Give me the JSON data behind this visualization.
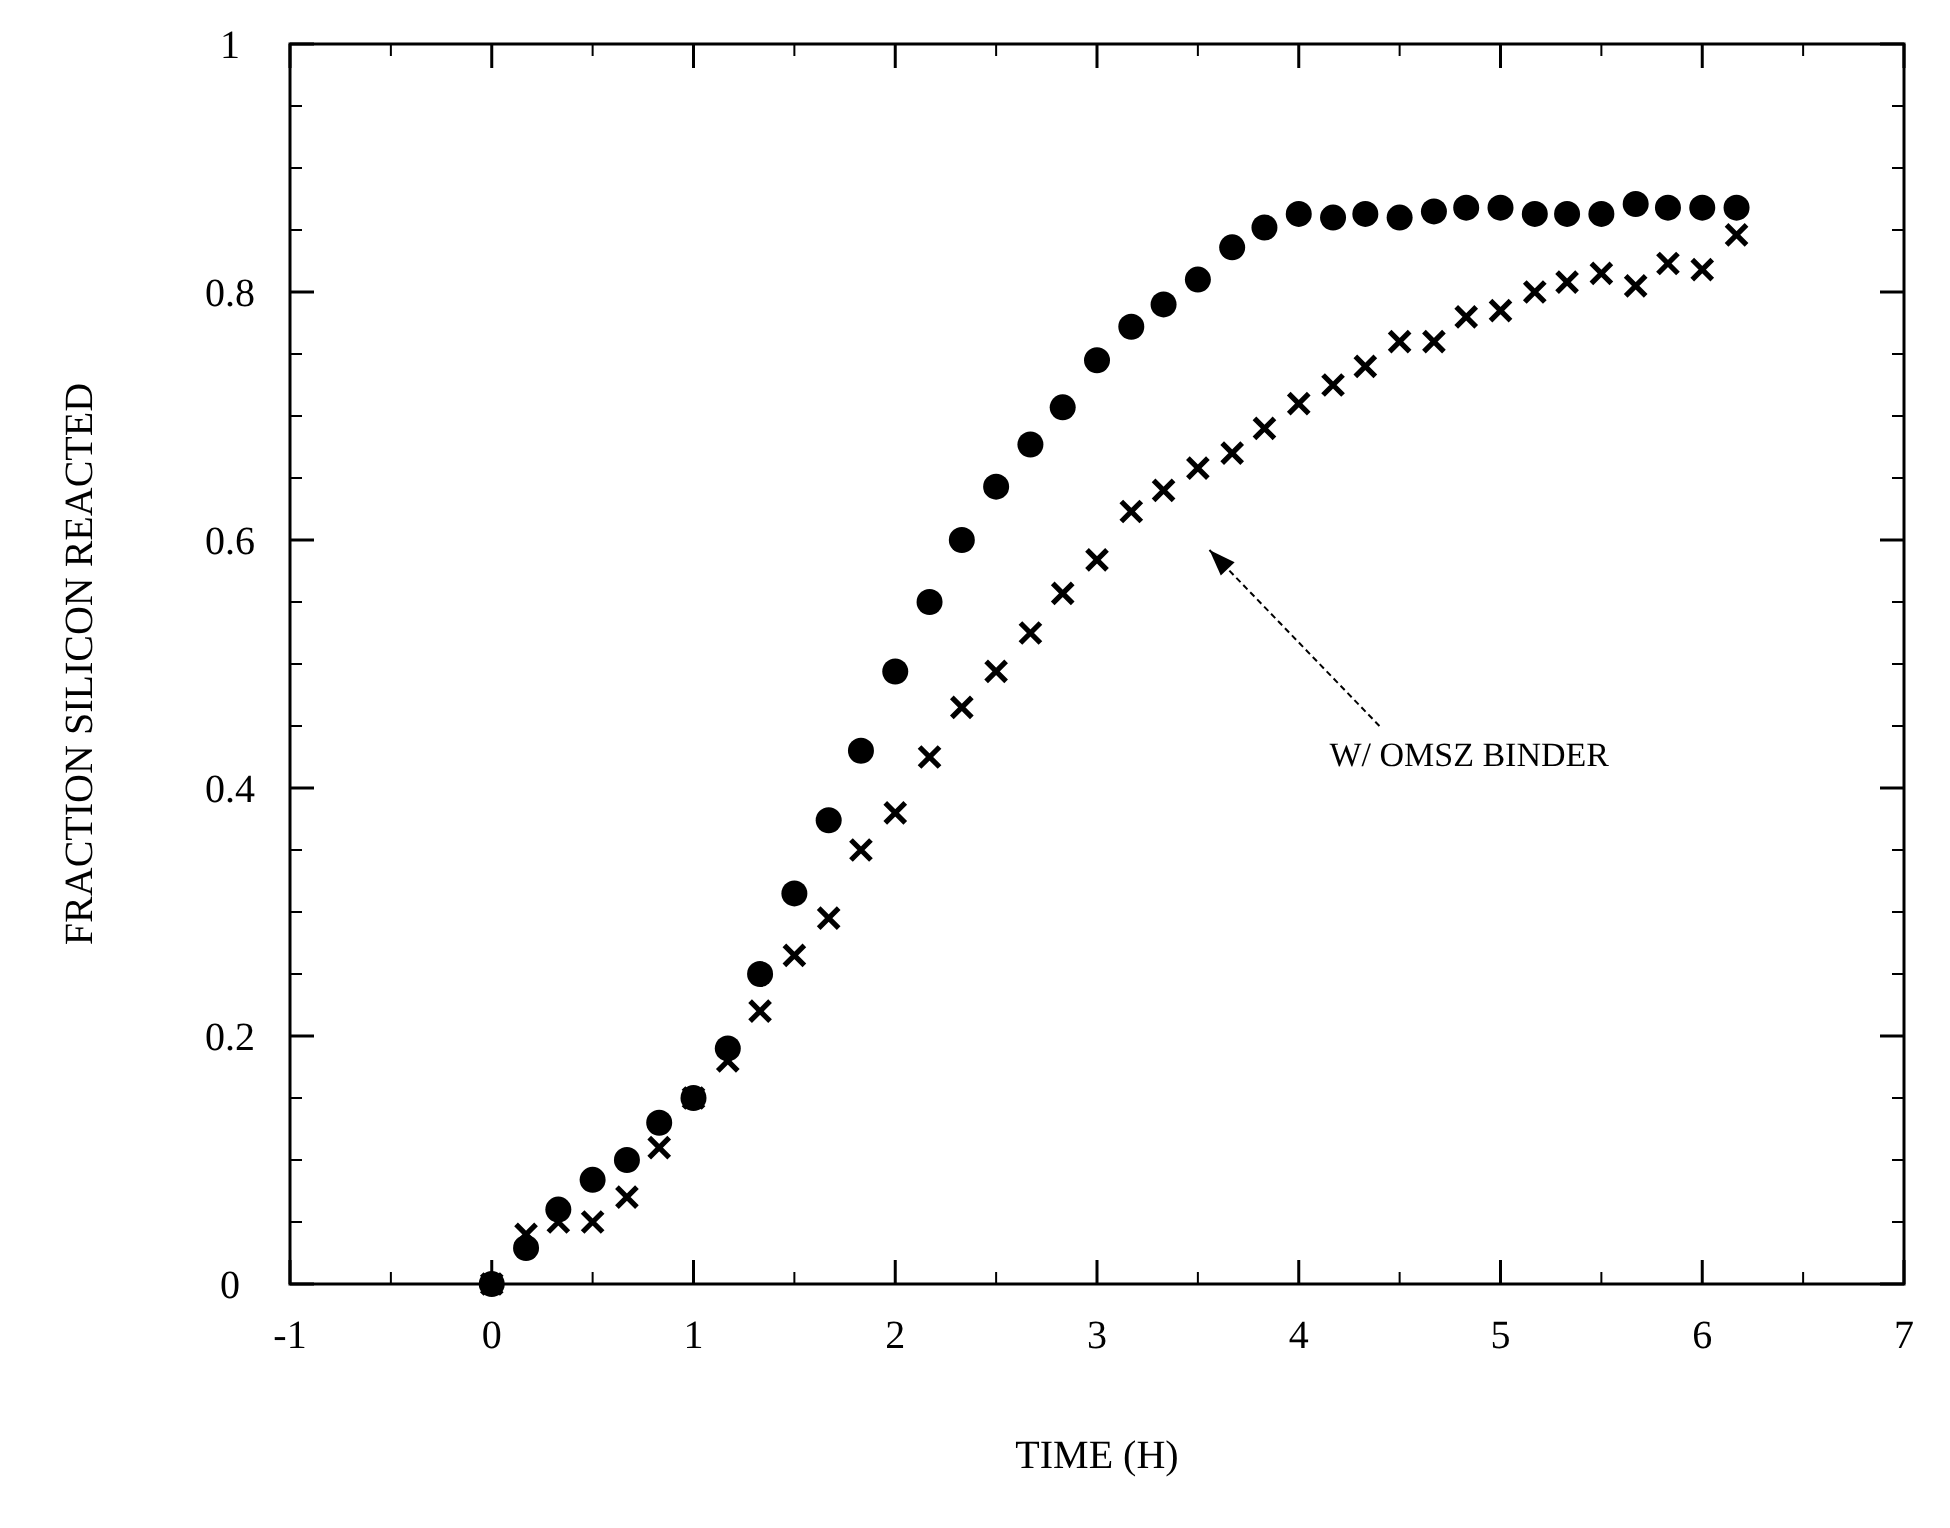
{
  "chart_data": {
    "type": "scatter",
    "xlabel": "TIME (H)",
    "ylabel": "FRACTION SILICON REACTED",
    "xlim": [
      -1,
      7
    ],
    "xticks": [
      -1,
      0,
      1,
      2,
      3,
      4,
      5,
      6,
      7
    ],
    "ylim": [
      0,
      1
    ],
    "yticks": [
      0,
      0.2,
      0.4,
      0.6,
      0.8,
      1
    ],
    "grid": false,
    "annotations": [
      "W/ OMSZ BINDER"
    ],
    "series": [
      {
        "color": "#000000",
        "marker": "circle",
        "x": [
          0,
          0.17,
          0.33,
          0.5,
          0.67,
          0.83,
          1.0,
          1.17,
          1.33,
          1.5,
          1.67,
          1.83,
          2.0,
          2.17,
          2.33,
          2.5,
          2.67,
          2.83,
          3.0,
          3.17,
          3.33,
          3.5,
          3.67,
          3.83,
          4.0,
          4.17,
          4.33,
          4.5,
          4.67,
          4.83,
          5.0,
          5.17,
          5.33,
          5.5,
          5.67,
          5.83,
          6.0,
          6.17
        ],
        "values": [
          0,
          0.029,
          0.06,
          0.084,
          0.1,
          0.13,
          0.15,
          0.19,
          0.25,
          0.315,
          0.374,
          0.43,
          0.494,
          0.55,
          0.6,
          0.643,
          0.677,
          0.707,
          0.745,
          0.772,
          0.79,
          0.81,
          0.836,
          0.852,
          0.863,
          0.86,
          0.863,
          0.86,
          0.865,
          0.868,
          0.868,
          0.863,
          0.863,
          0.863,
          0.871,
          0.868,
          0.868,
          0.868
        ]
      },
      {
        "color": "#000000",
        "marker": "cross",
        "x": [
          0,
          0.17,
          0.33,
          0.5,
          0.67,
          0.83,
          1.0,
          1.17,
          1.33,
          1.5,
          1.67,
          1.83,
          2.0,
          2.17,
          2.33,
          2.5,
          2.67,
          2.83,
          3.0,
          3.17,
          3.33,
          3.5,
          3.67,
          3.83,
          4.0,
          4.17,
          4.33,
          4.5,
          4.67,
          4.83,
          5.0,
          5.17,
          5.33,
          5.5,
          5.67,
          5.83,
          6.0,
          6.17
        ],
        "values": [
          0,
          0.04,
          0.05,
          0.05,
          0.07,
          0.11,
          0.15,
          0.18,
          0.22,
          0.265,
          0.295,
          0.35,
          0.38,
          0.425,
          0.465,
          0.494,
          0.525,
          0.557,
          0.584,
          0.623,
          0.64,
          0.658,
          0.67,
          0.69,
          0.71,
          0.725,
          0.74,
          0.76,
          0.76,
          0.78,
          0.785,
          0.8,
          0.808,
          0.815,
          0.805,
          0.823,
          0.818,
          0.846
        ]
      }
    ]
  }
}
